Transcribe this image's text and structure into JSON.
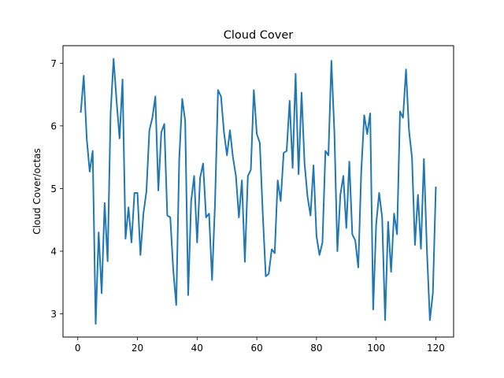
{
  "chart_data": {
    "type": "line",
    "title": "Cloud Cover",
    "xlabel": "",
    "ylabel": "Cloud Cover/octas",
    "xlim": [
      -4.95,
      125.95
    ],
    "ylim": [
      2.63,
      7.28
    ],
    "xticks": [
      0,
      20,
      40,
      60,
      80,
      100,
      120
    ],
    "yticks": [
      3,
      4,
      5,
      6,
      7
    ],
    "grid": false,
    "series": [
      {
        "color": "#1f77b4",
        "x": [
          1,
          2,
          3,
          4,
          5,
          6,
          7,
          8,
          9,
          10,
          11,
          12,
          13,
          14,
          15,
          16,
          17,
          18,
          19,
          20,
          21,
          22,
          23,
          24,
          25,
          26,
          27,
          28,
          29,
          30,
          31,
          32,
          33,
          34,
          35,
          36,
          37,
          38,
          39,
          40,
          41,
          42,
          43,
          44,
          45,
          46,
          47,
          48,
          49,
          50,
          51,
          52,
          53,
          54,
          55,
          56,
          57,
          58,
          59,
          60,
          61,
          62,
          63,
          64,
          65,
          66,
          67,
          68,
          69,
          70,
          71,
          72,
          73,
          74,
          75,
          76,
          77,
          78,
          79,
          80,
          81,
          82,
          83,
          84,
          85,
          86,
          87,
          88,
          89,
          90,
          91,
          92,
          93,
          94,
          95,
          96,
          97,
          98,
          99,
          100,
          101,
          102,
          103,
          104,
          105,
          106,
          107,
          108,
          109,
          110,
          111,
          112,
          113,
          114,
          115,
          116,
          117,
          118,
          119,
          120
        ],
        "values": [
          6.21,
          6.8,
          5.8,
          5.27,
          5.6,
          2.84,
          4.3,
          3.33,
          4.77,
          3.84,
          6.2,
          7.07,
          6.4,
          5.8,
          6.74,
          4.2,
          4.7,
          4.14,
          4.93,
          4.93,
          3.94,
          4.6,
          4.95,
          5.93,
          6.13,
          6.47,
          4.97,
          5.9,
          6.03,
          4.57,
          4.54,
          3.7,
          3.14,
          5.47,
          6.43,
          6.08,
          3.3,
          4.8,
          5.2,
          4.14,
          5.17,
          5.4,
          4.54,
          4.6,
          3.54,
          4.77,
          6.57,
          6.47,
          5.9,
          5.53,
          5.93,
          5.5,
          5.2,
          4.54,
          5.13,
          3.83,
          5.2,
          5.3,
          6.57,
          5.87,
          5.73,
          4.6,
          3.6,
          3.64,
          4.03,
          3.97,
          5.13,
          4.8,
          5.57,
          5.6,
          6.4,
          5.33,
          6.83,
          5.23,
          6.53,
          5.4,
          4.87,
          4.57,
          5.37,
          4.24,
          3.94,
          4.14,
          5.6,
          5.53,
          7.04,
          5.9,
          4.0,
          4.9,
          5.2,
          4.37,
          5.43,
          4.27,
          4.17,
          3.74,
          5.27,
          6.17,
          5.87,
          6.2,
          3.07,
          4.43,
          4.93,
          4.54,
          2.9,
          4.47,
          3.67,
          4.6,
          4.27,
          6.23,
          6.13,
          6.9,
          5.93,
          5.5,
          4.1,
          4.9,
          4.04,
          5.47,
          4.03,
          2.9,
          3.33,
          5.03
        ]
      }
    ]
  }
}
